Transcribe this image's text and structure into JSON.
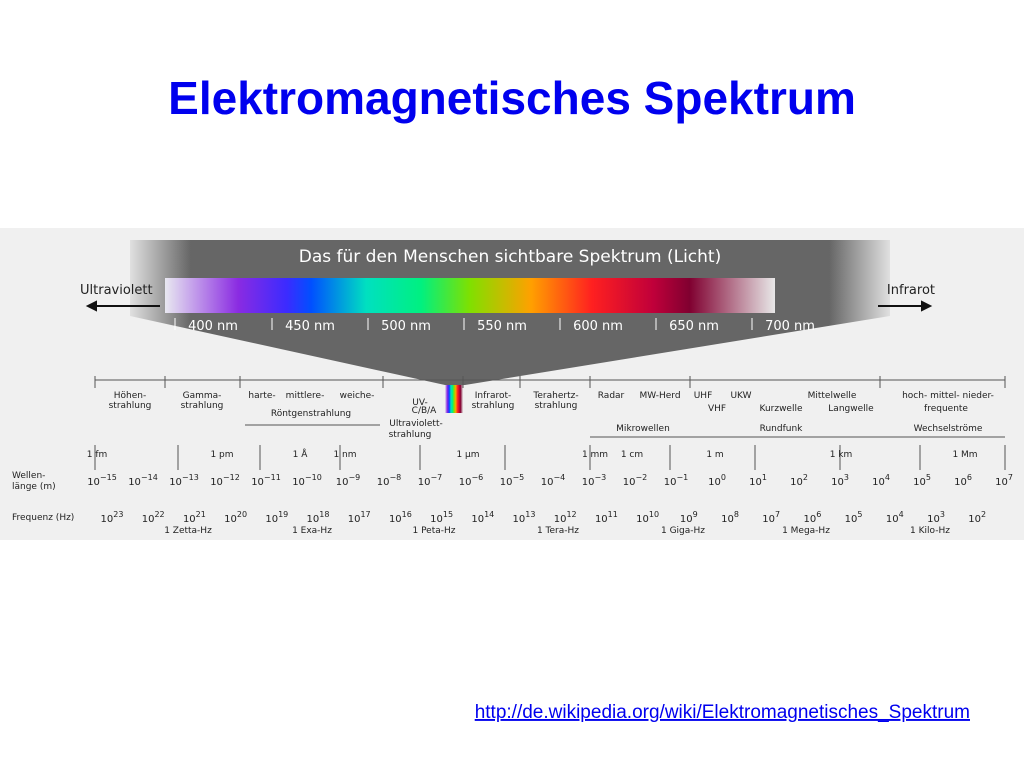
{
  "slide": {
    "title": "Elektromagnetisches Spektrum",
    "link": "http://de.wikipedia.org/wiki/Elektromagnetisches_Spektrum"
  },
  "diagram": {
    "banner_title": "Das für den Menschen sichtbare Spektrum (Licht)",
    "left_label": "Ultraviolett",
    "right_label": "Infrarot",
    "visible_ticks": [
      "400 nm",
      "450 nm",
      "500 nm",
      "550 nm",
      "600 nm",
      "650 nm",
      "700 nm"
    ],
    "bands": [
      "Höhen-",
      "strahlung",
      "Gamma-",
      "strahlung",
      "harte-",
      "mittlere-",
      "weiche-",
      "Röntgenstrahlung",
      "UV-",
      "C/B/A",
      "Ultraviolett-",
      "strahlung",
      "Infrarot-",
      "strahlung",
      "Terahertz-",
      "strahlung",
      "Radar",
      "MW-Herd",
      "UHF",
      "UKW",
      "Mittelwelle",
      "VHF",
      "Kurzwelle",
      "Langwelle",
      "Mikrowellen",
      "Rundfunk",
      "hoch- mittel- nieder-",
      "frequente",
      "Wechselströme"
    ],
    "length_units": [
      "1 fm",
      "1 pm",
      "1 Å",
      "1 nm",
      "1 µm",
      "1 mm",
      "1 cm",
      "1 m",
      "1 km",
      "1 Mm"
    ],
    "wavelength_label": [
      "Wellen-",
      "länge (m)"
    ],
    "frequency_label": "Frequenz (Hz)",
    "power_base": "10",
    "wavelength_exponents": [
      "−15",
      "−14",
      "−13",
      "−12",
      "−11",
      "−10",
      "−9",
      "−8",
      "−7",
      "−6",
      "−5",
      "−4",
      "−3",
      "−2",
      "−1",
      "0",
      "1",
      "2",
      "3",
      "4",
      "5",
      "6",
      "7"
    ],
    "frequency_exponents": [
      "23",
      "22",
      "21",
      "20",
      "19",
      "18",
      "17",
      "16",
      "15",
      "14",
      "13",
      "12",
      "11",
      "10",
      "9",
      "8",
      "7",
      "6",
      "5",
      "4",
      "3",
      "2"
    ],
    "frequency_units": [
      "1 Zetta-Hz",
      "1 Exa-Hz",
      "1 Peta-Hz",
      "1 Tera-Hz",
      "1 Giga-Hz",
      "1 Mega-Hz",
      "1 Kilo-Hz"
    ]
  }
}
